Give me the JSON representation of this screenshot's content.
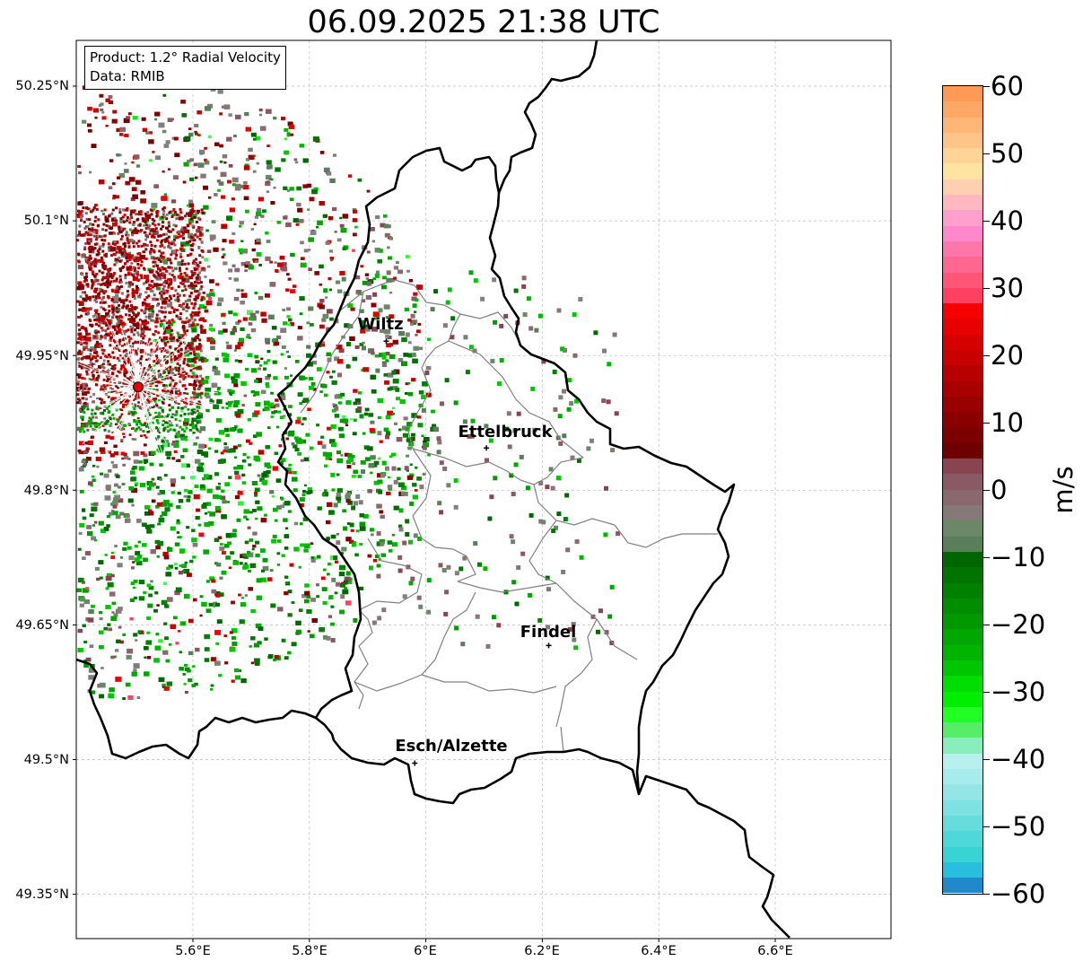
{
  "title": "06.09.2025 21:38 UTC",
  "info": {
    "product": "Product: 1.2° Radial Velocity",
    "source": "Data: RMIB"
  },
  "axes": {
    "lat_labels": [
      "50.25°N",
      "50.1°N",
      "49.95°N",
      "49.8°N",
      "49.65°N",
      "49.5°N",
      "49.35°N"
    ],
    "lon_labels": [
      "5.6°E",
      "5.8°E",
      "6°E",
      "6.2°E",
      "6.4°E",
      "6.6°E"
    ]
  },
  "cities": [
    {
      "name": "Wiltz",
      "lat": 49.966,
      "lon": 5.932
    },
    {
      "name": "Ettelbruck",
      "lat": 49.847,
      "lon": 6.104
    },
    {
      "name": "Findel",
      "lat": 49.627,
      "lon": 6.211
    },
    {
      "name": "Esch/Alzette",
      "lat": 49.496,
      "lon": 5.981
    }
  ],
  "radar_site": {
    "lat": 49.915,
    "lon": 5.506
  },
  "colorbar": {
    "unit": "m/s",
    "min": -60,
    "max": 60,
    "ticks": [
      "60",
      "50",
      "40",
      "30",
      "20",
      "10",
      "0",
      "−10",
      "−20",
      "−30",
      "−40",
      "−50",
      "−60"
    ],
    "colors": [
      "#ff9955",
      "#ffa866",
      "#ffb777",
      "#ffc588",
      "#ffd495",
      "#ffe3a0",
      "#ffd0b0",
      "#ffb8c0",
      "#ffa0cc",
      "#ff88cc",
      "#ff77aa",
      "#ff6690",
      "#ff5577",
      "#ff4060",
      "#f70000",
      "#e60000",
      "#d60000",
      "#c80000",
      "#b70000",
      "#a80000",
      "#990000",
      "#8a0000",
      "#7c0000",
      "#6e0000",
      "#884450",
      "#8a5a64",
      "#8a6870",
      "#877878",
      "#6a8868",
      "#5a7d5a",
      "#006600",
      "#007300",
      "#008000",
      "#008d00",
      "#009a00",
      "#00a700",
      "#00b400",
      "#00c600",
      "#00dd00",
      "#00ee00",
      "#22ff22",
      "#55ee66",
      "#88eebb",
      "#b8f0f0",
      "#a6ecec",
      "#94e6e6",
      "#7ee2e2",
      "#66dddd",
      "#4ed8d8",
      "#38d4d4",
      "#28bedd",
      "#2288cc"
    ],
    "bar_color_legend": "orange-pink-red for positive (away), greys near 0, green-cyan-blue for negative (toward)"
  },
  "colors": {
    "border": "#000000",
    "canton_lines": "#808080",
    "radar_site": "#e00000",
    "grid": "#bbbbbb"
  }
}
